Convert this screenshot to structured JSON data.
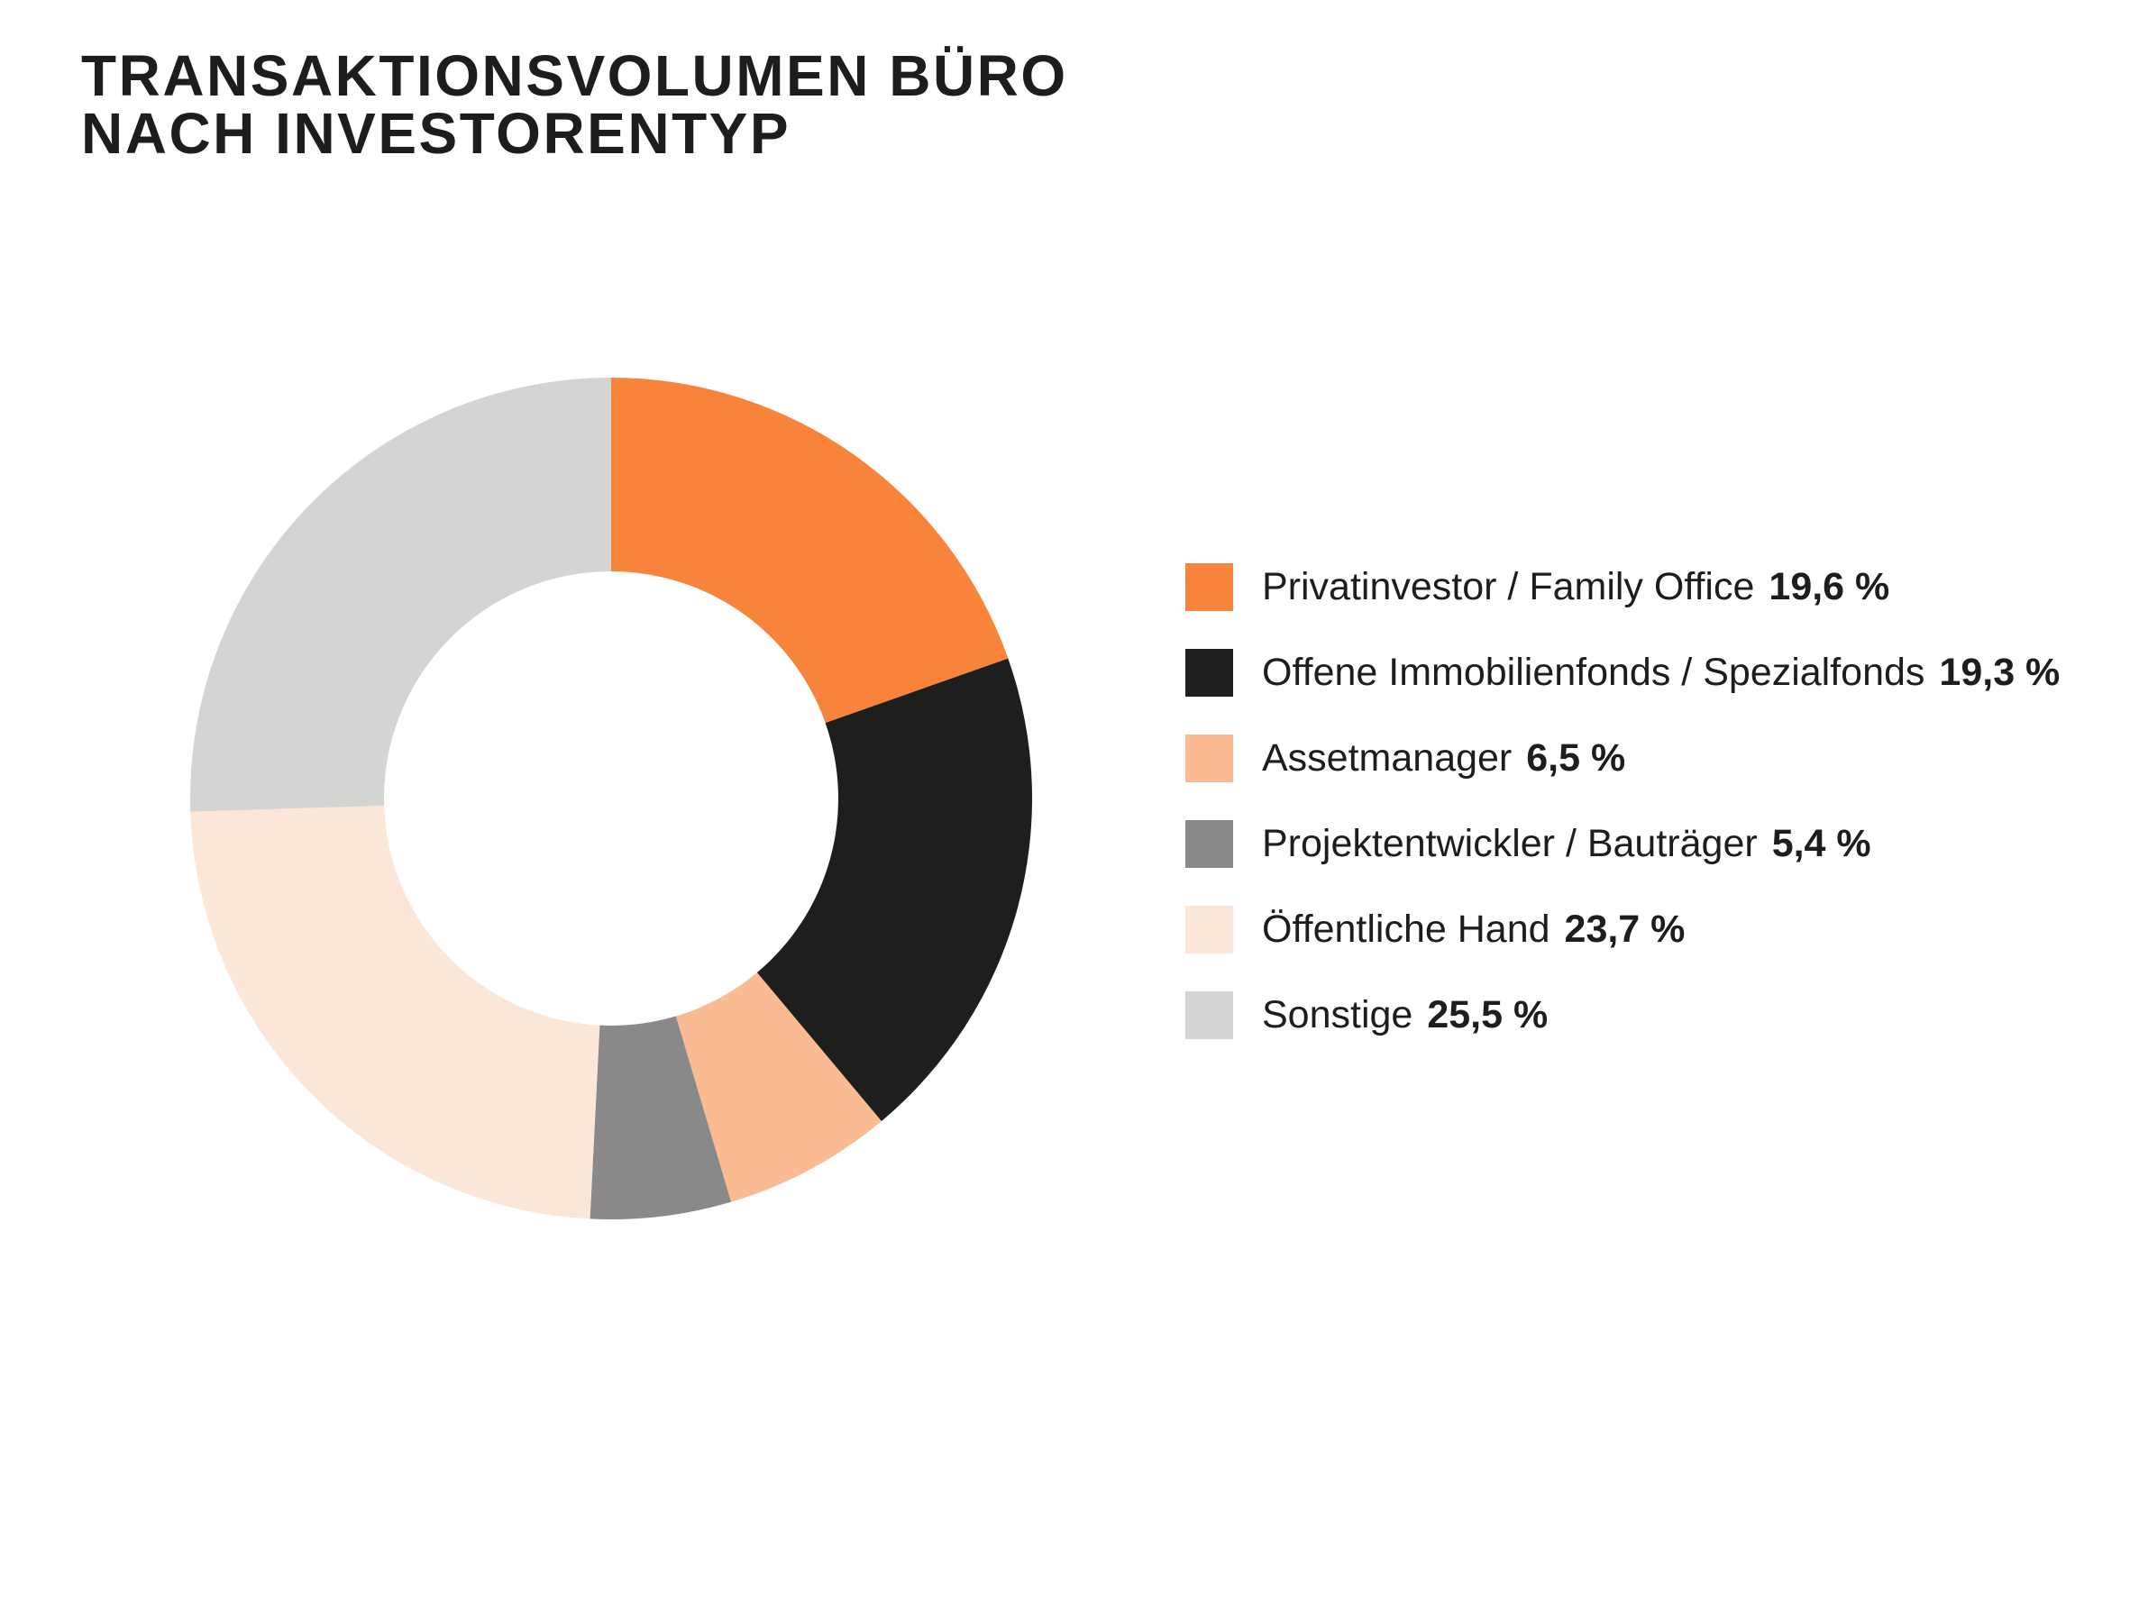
{
  "title": {
    "line1": "TRANSAKTIONSVOLUMEN BÜRO",
    "line2": "NACH INVESTORENTYP"
  },
  "colors": {
    "background": "#FFFFFF",
    "text": "#1D1D1B"
  },
  "chart_data": {
    "type": "pie",
    "subtype": "donut",
    "title": "TRANSAKTIONSVOLUMEN BÜRO NACH INVESTORENTYP",
    "start_angle_deg": 0,
    "direction": "clockwise",
    "inner_radius_ratio": 0.54,
    "legend_position": "right",
    "grid": false,
    "segments": [
      {
        "label": "Privatinvestor / Family Office",
        "value_pct": 19.6,
        "display_value": "19,6 %",
        "color": "#F8843C"
      },
      {
        "label": "Offene Immobilienfonds / Spezialfonds",
        "value_pct": 19.3,
        "display_value": "19,3 %",
        "color": "#1E1E1C"
      },
      {
        "label": "Assetmanager",
        "value_pct": 6.5,
        "display_value": "6,5 %",
        "color": "#FBBB92"
      },
      {
        "label": "Projektentwickler / Bauträger",
        "value_pct": 5.4,
        "display_value": "5,4 %",
        "color": "#898989"
      },
      {
        "label": "Öffentliche Hand",
        "value_pct": 23.7,
        "display_value": "23,7 %",
        "color": "#FCE6D7"
      },
      {
        "label": "Sonstige",
        "value_pct": 25.5,
        "display_value": "25,5 %",
        "color": "#D4D4D3"
      }
    ]
  }
}
